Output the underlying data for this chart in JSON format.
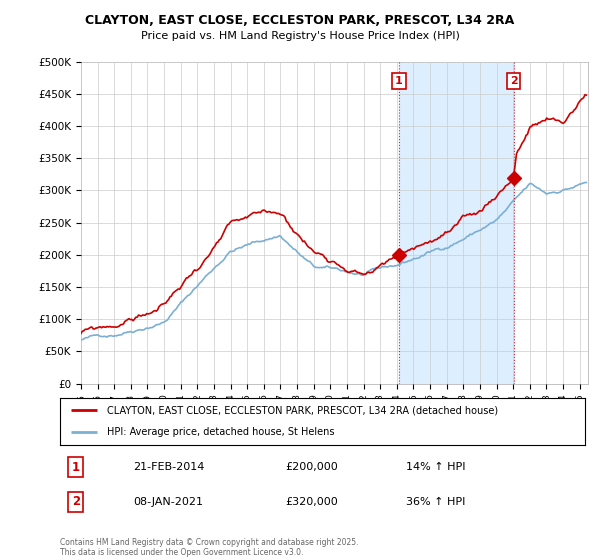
{
  "title_line1": "CLAYTON, EAST CLOSE, ECCLESTON PARK, PRESCOT, L34 2RA",
  "title_line2": "Price paid vs. HM Land Registry's House Price Index (HPI)",
  "ylim": [
    0,
    500000
  ],
  "xlim_start": 1995.0,
  "xlim_end": 2025.5,
  "yticks": [
    0,
    50000,
    100000,
    150000,
    200000,
    250000,
    300000,
    350000,
    400000,
    450000,
    500000
  ],
  "ytick_labels": [
    "£0",
    "£50K",
    "£100K",
    "£150K",
    "£200K",
    "£250K",
    "£300K",
    "£350K",
    "£400K",
    "£450K",
    "£500K"
  ],
  "hpi_color": "#7bafd4",
  "price_color": "#cc0000",
  "marker1_x": 2014.13,
  "marker1_y": 200000,
  "marker2_x": 2021.03,
  "marker2_y": 320000,
  "vline1_x": 2014.13,
  "vline2_x": 2021.03,
  "shade_color": "#ddeeff",
  "annotation1": "1",
  "annotation2": "2",
  "legend_label1": "CLAYTON, EAST CLOSE, ECCLESTON PARK, PRESCOT, L34 2RA (detached house)",
  "legend_label2": "HPI: Average price, detached house, St Helens",
  "table_row1": [
    "1",
    "21-FEB-2014",
    "£200,000",
    "14% ↑ HPI"
  ],
  "table_row2": [
    "2",
    "08-JAN-2021",
    "£320,000",
    "36% ↑ HPI"
  ],
  "footer": "Contains HM Land Registry data © Crown copyright and database right 2025.\nThis data is licensed under the Open Government Licence v3.0.",
  "background_color": "#ffffff",
  "grid_color": "#cccccc"
}
